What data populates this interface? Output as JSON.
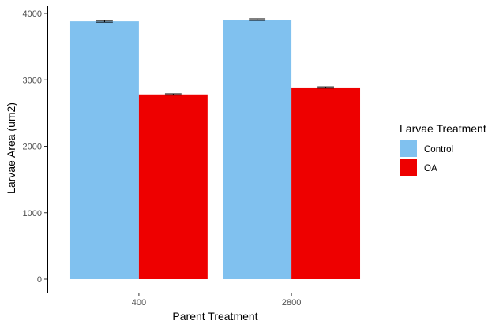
{
  "chart_data": {
    "type": "bar",
    "categories": [
      "400",
      "2800"
    ],
    "series": [
      {
        "name": "Control",
        "color": "#80C1EF",
        "values": [
          3880,
          3905
        ],
        "error": [
          12,
          12
        ]
      },
      {
        "name": "OA",
        "color": "#EE0000",
        "values": [
          2780,
          2885
        ],
        "error": [
          10,
          10
        ]
      }
    ],
    "xlabel": "Parent Treatment",
    "ylabel": "Larvae Area (um2)",
    "yticks": [
      0,
      1000,
      2000,
      3000,
      4000
    ],
    "ylim": [
      0,
      4100
    ],
    "grid": false,
    "legend": {
      "title": "Larvae Treatment",
      "position": "right"
    }
  }
}
